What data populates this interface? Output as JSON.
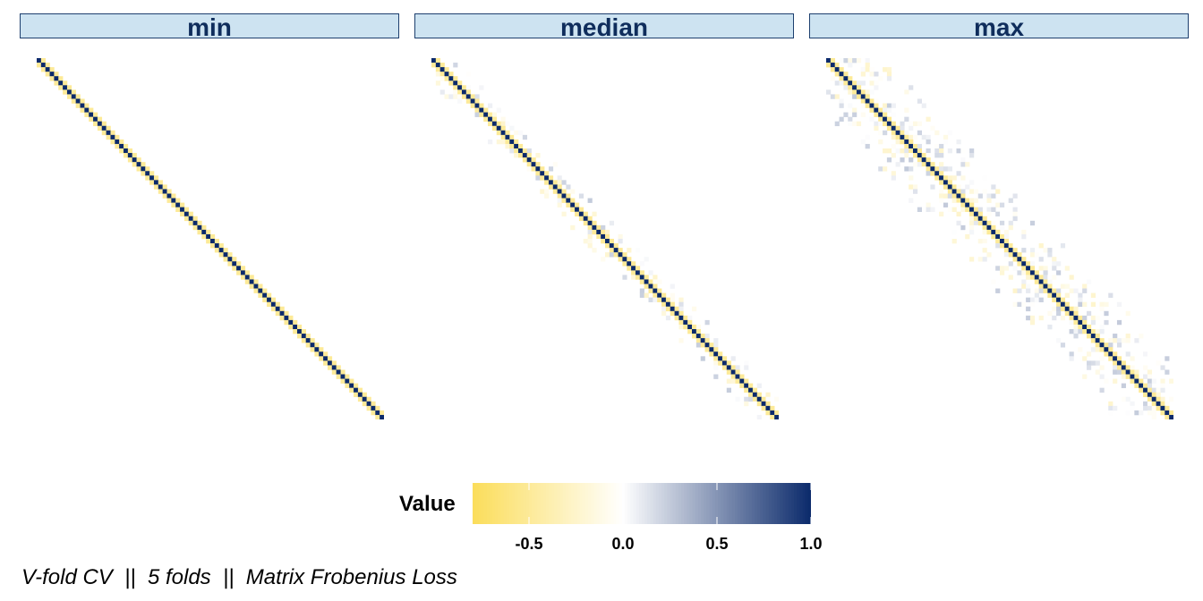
{
  "chart_data": {
    "type": "heatmap",
    "panels": [
      {
        "label": "min",
        "n": 80,
        "noise_prob": 0.0,
        "noise_band": 0
      },
      {
        "label": "median",
        "n": 80,
        "noise_prob": 0.45,
        "noise_band": 5
      },
      {
        "label": "max",
        "n": 80,
        "noise_prob": 0.45,
        "noise_band": 13
      }
    ],
    "diagonal_value": 1.0,
    "off_diagonal_value": -0.5,
    "legend": {
      "title": "Value",
      "range": [
        -0.8,
        1.0
      ],
      "ticks": [
        "-0.5",
        "0.0",
        "0.5",
        "1.0"
      ],
      "tick_values": [
        -0.5,
        0.0,
        0.5,
        1.0
      ],
      "colors": {
        "low": "#fbdd5a",
        "mid": "#ffffff",
        "high": "#0b2a6b"
      }
    },
    "caption": "V-fold CV  ||  5 folds  ||  Matrix Frobenius Loss"
  }
}
